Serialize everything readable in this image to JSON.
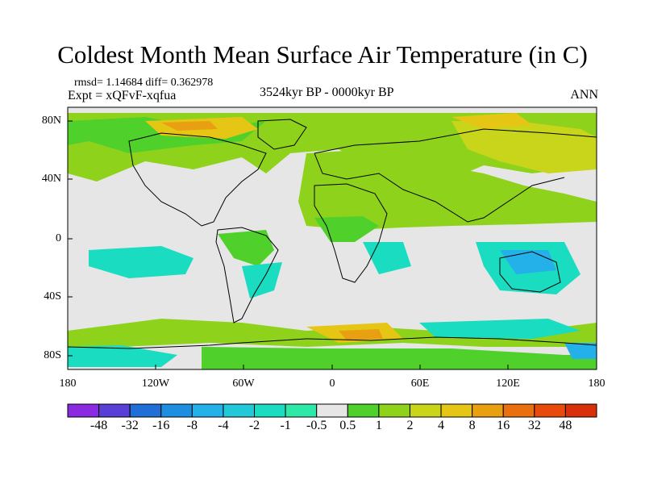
{
  "title": "Coldest Month Mean Surface Air Temperature (in C)",
  "stats": "rmsd= 1.14684 diff= 0.362978",
  "experiment": "Expt = xQFvF-xqfua",
  "period": "3524kyr BP - 0000kyr BP",
  "season": "ANN",
  "lat_labels": [
    "80N",
    "40N",
    "0",
    "40S",
    "80S"
  ],
  "lon_labels": [
    "180",
    "120W",
    "60W",
    "0",
    "60E",
    "120E",
    "180"
  ],
  "colorbar": {
    "labels": [
      "-48",
      "-32",
      "-16",
      "-8",
      "-4",
      "-2",
      "-1",
      "-0.5",
      "0.5",
      "1",
      "2",
      "4",
      "8",
      "16",
      "32",
      "48"
    ],
    "colors": [
      "#8a2be2",
      "#5a3fd6",
      "#1f6fd6",
      "#1e8fe0",
      "#24b0e8",
      "#20c8d8",
      "#19dcc0",
      "#2ee8a8",
      "#e6e6e6",
      "#4fd02a",
      "#8fd21c",
      "#c8d51a",
      "#e6c614",
      "#e8a012",
      "#e8700e",
      "#e84a0c",
      "#d8300a"
    ]
  },
  "map": {
    "land_mask_color": "#e6e6e6",
    "coast_color": "#000000"
  }
}
